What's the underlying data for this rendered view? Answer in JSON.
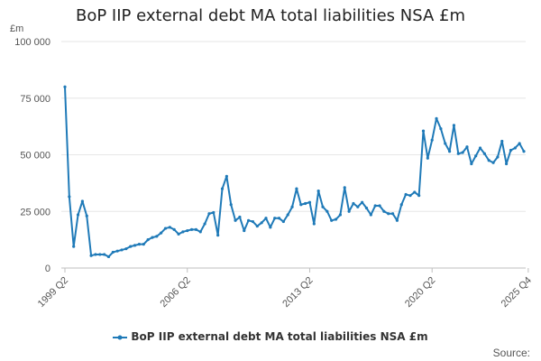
{
  "chart_data": {
    "type": "line",
    "title": "BoP IIP external debt MA total liabilities NSA £m",
    "y_unit": "£m",
    "xlabel": "",
    "ylabel": "",
    "ylim": [
      0,
      100000
    ],
    "y_ticks": [
      0,
      25000,
      50000,
      75000,
      100000
    ],
    "y_tick_labels": [
      "0",
      "25 000",
      "50 000",
      "75 000",
      "100 000"
    ],
    "x_ticks": [
      "1999 Q2",
      "2006 Q2",
      "2013 Q2",
      "2020 Q2",
      "2025 Q4"
    ],
    "grid": true,
    "legend_position": "bottom",
    "series": [
      {
        "name": "BoP IIP external debt MA total liabilities NSA £m",
        "color": "#1f7ab8",
        "x_start": "1999 Q2",
        "x_end": "2025 Q4",
        "values": [
          80000,
          31500,
          9500,
          23500,
          29500,
          23000,
          5500,
          6000,
          6000,
          6000,
          5000,
          7000,
          7500,
          8000,
          8500,
          9500,
          10000,
          10500,
          10500,
          12500,
          13500,
          14000,
          15500,
          17500,
          18000,
          17000,
          15000,
          16000,
          16500,
          17000,
          17000,
          16000,
          19500,
          24000,
          24500,
          14500,
          35000,
          40500,
          28000,
          21000,
          22500,
          16500,
          21000,
          20500,
          18500,
          20000,
          22000,
          18000,
          22000,
          22000,
          20500,
          23500,
          27000,
          35000,
          28000,
          28500,
          29000,
          19500,
          34000,
          27000,
          25000,
          21000,
          21500,
          23500,
          35500,
          25000,
          28500,
          27000,
          29000,
          26500,
          23500,
          27500,
          27500,
          25000,
          24000,
          24000,
          21000,
          28000,
          32500,
          32000,
          33500,
          32000,
          60500,
          48500,
          56500,
          66000,
          61500,
          55000,
          51500,
          63000,
          50500,
          51000,
          53500,
          46000,
          49500,
          53000,
          50500,
          47500,
          46500,
          49000,
          56000,
          46000,
          52000,
          53000,
          55000,
          51500
        ]
      }
    ]
  },
  "source_label": "Source:",
  "legend_marker_icon": "line-with-dot-icon"
}
